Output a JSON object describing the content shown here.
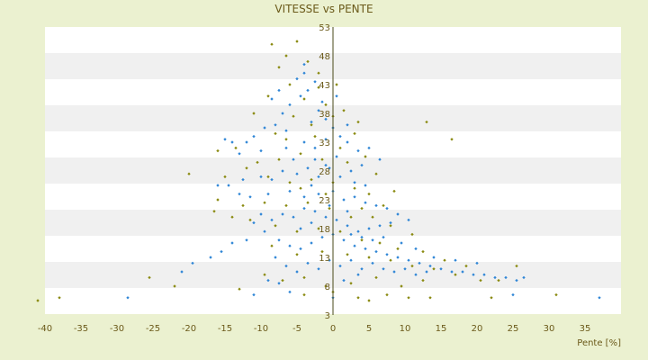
{
  "chart_data": {
    "type": "scatter",
    "title": "VITESSE vs PENTE",
    "xlabel": "Pente [%]",
    "ylabel": "",
    "xlim": [
      -40,
      40
    ],
    "ylim": [
      3,
      53
    ],
    "x_ticks": [
      "-40",
      "-35",
      "-30",
      "-25",
      "-20",
      "-15",
      "-10",
      "-5",
      "0",
      "5",
      "10",
      "15",
      "20",
      "25",
      "30",
      "35"
    ],
    "y_ticks": [
      "3",
      "8",
      "13",
      "18",
      "23",
      "28",
      "33",
      "38",
      "43",
      "48",
      "53"
    ],
    "grid": "horizontal alternating bands",
    "legend": "none",
    "colors": {
      "background": "#ebf1d0",
      "plot_band_light": "#ffffff",
      "plot_band_dark": "#f0f0f0",
      "text": "#6b5a1a",
      "axis": "#4a4a1a",
      "series_blue": "#2f86d6",
      "series_olive": "#8a8a10"
    },
    "series": [
      {
        "color": "#2f86d6",
        "points": [
          [
            -5.0,
            44.0
          ],
          [
            -4.5,
            41.0
          ],
          [
            -4.0,
            45.0
          ],
          [
            -3.5,
            42.0
          ],
          [
            -6.0,
            39.5
          ],
          [
            -7.0,
            38.0
          ],
          [
            -2.0,
            38.5
          ],
          [
            -1.5,
            40.0
          ],
          [
            0.5,
            41.0
          ],
          [
            -3.0,
            36.5
          ],
          [
            -8.0,
            36.0
          ],
          [
            -9.5,
            35.5
          ],
          [
            -11.0,
            34.0
          ],
          [
            -12.0,
            33.0
          ],
          [
            -14.0,
            33.0
          ],
          [
            -15.0,
            33.5
          ],
          [
            -13.0,
            31.0
          ],
          [
            -10.0,
            31.5
          ],
          [
            -6.5,
            32.0
          ],
          [
            -4.0,
            33.0
          ],
          [
            -2.5,
            32.0
          ],
          [
            -1.0,
            33.5
          ],
          [
            1.0,
            34.0
          ],
          [
            2.0,
            33.0
          ],
          [
            3.5,
            31.5
          ],
          [
            5.0,
            32.0
          ],
          [
            6.5,
            30.0
          ],
          [
            4.0,
            29.0
          ],
          [
            2.5,
            28.0
          ],
          [
            1.0,
            27.0
          ],
          [
            -0.5,
            28.5
          ],
          [
            -2.0,
            27.0
          ],
          [
            -3.5,
            28.5
          ],
          [
            -5.0,
            27.5
          ],
          [
            -7.0,
            28.0
          ],
          [
            -8.5,
            26.5
          ],
          [
            -10.0,
            27.0
          ],
          [
            -12.5,
            26.5
          ],
          [
            -14.5,
            25.5
          ],
          [
            -16.0,
            25.5
          ],
          [
            -13.0,
            24.0
          ],
          [
            -11.5,
            23.5
          ],
          [
            -9.0,
            24.0
          ],
          [
            -6.0,
            24.5
          ],
          [
            -4.0,
            23.5
          ],
          [
            -2.0,
            24.0
          ],
          [
            0.0,
            24.5
          ],
          [
            1.5,
            23.0
          ],
          [
            3.0,
            23.5
          ],
          [
            4.5,
            22.5
          ],
          [
            6.0,
            22.0
          ],
          [
            7.5,
            21.5
          ],
          [
            9.0,
            20.5
          ],
          [
            10.5,
            19.5
          ],
          [
            8.0,
            19.0
          ],
          [
            6.5,
            18.5
          ],
          [
            5.0,
            18.0
          ],
          [
            3.5,
            17.5
          ],
          [
            2.0,
            18.5
          ],
          [
            0.5,
            19.5
          ],
          [
            -1.0,
            20.0
          ],
          [
            -2.5,
            21.0
          ],
          [
            -4.0,
            21.5
          ],
          [
            -5.5,
            20.0
          ],
          [
            -7.0,
            20.5
          ],
          [
            -8.5,
            19.5
          ],
          [
            -10.0,
            20.5
          ],
          [
            -11.0,
            19.0
          ],
          [
            -9.5,
            17.5
          ],
          [
            -7.5,
            16.0
          ],
          [
            -6.0,
            15.0
          ],
          [
            -4.5,
            14.5
          ],
          [
            -3.0,
            15.5
          ],
          [
            -1.5,
            16.5
          ],
          [
            0.0,
            17.0
          ],
          [
            1.5,
            16.0
          ],
          [
            3.0,
            15.0
          ],
          [
            4.5,
            14.5
          ],
          [
            6.0,
            14.0
          ],
          [
            7.5,
            13.5
          ],
          [
            9.0,
            13.0
          ],
          [
            10.5,
            12.5
          ],
          [
            12.0,
            12.0
          ],
          [
            13.5,
            11.5
          ],
          [
            15.0,
            11.0
          ],
          [
            16.5,
            10.5
          ],
          [
            18.0,
            10.5
          ],
          [
            19.5,
            10.0
          ],
          [
            21.0,
            10.0
          ],
          [
            22.5,
            9.5
          ],
          [
            24.0,
            9.5
          ],
          [
            25.5,
            9.0
          ],
          [
            26.5,
            9.5
          ],
          [
            20.0,
            12.0
          ],
          [
            17.0,
            12.5
          ],
          [
            14.0,
            13.0
          ],
          [
            11.5,
            14.5
          ],
          [
            9.5,
            15.5
          ],
          [
            7.0,
            16.5
          ],
          [
            5.5,
            16.0
          ],
          [
            4.0,
            16.5
          ],
          [
            2.5,
            17.0
          ],
          [
            -12.0,
            16.0
          ],
          [
            -14.0,
            15.5
          ],
          [
            -15.5,
            14.0
          ],
          [
            -17.0,
            13.0
          ],
          [
            -19.5,
            12.0
          ],
          [
            -21.0,
            10.5
          ],
          [
            -8.0,
            13.0
          ],
          [
            -6.5,
            11.5
          ],
          [
            -5.0,
            10.5
          ],
          [
            -3.5,
            12.0
          ],
          [
            -2.0,
            11.0
          ],
          [
            -0.5,
            12.5
          ],
          [
            1.0,
            11.5
          ],
          [
            2.5,
            12.5
          ],
          [
            4.0,
            11.0
          ],
          [
            5.5,
            12.0
          ],
          [
            7.0,
            11.0
          ],
          [
            8.5,
            10.5
          ],
          [
            10.0,
            11.0
          ],
          [
            11.5,
            10.0
          ],
          [
            13.0,
            10.5
          ],
          [
            2.0,
            21.0
          ],
          [
            -0.5,
            22.0
          ],
          [
            -3.0,
            25.5
          ],
          [
            -5.5,
            30.0
          ],
          [
            -6.5,
            35.0
          ],
          [
            -2.5,
            30.0
          ],
          [
            -1.0,
            29.0
          ],
          [
            0.5,
            30.5
          ],
          [
            3.0,
            26.0
          ],
          [
            4.5,
            25.5
          ],
          [
            -4.5,
            18.0
          ],
          [
            -3.0,
            19.0
          ],
          [
            -28.5,
            6.0
          ],
          [
            -11.0,
            6.5
          ],
          [
            -6.0,
            7.0
          ],
          [
            0.0,
            6.0
          ],
          [
            25.0,
            6.5
          ],
          [
            37.0,
            6.0
          ],
          [
            -9.0,
            9.0
          ],
          [
            -7.5,
            8.5
          ],
          [
            1.5,
            9.0
          ],
          [
            3.5,
            10.0
          ],
          [
            -4.0,
            46.5
          ],
          [
            -2.5,
            43.5
          ],
          [
            -7.5,
            42.0
          ],
          [
            -8.5,
            40.5
          ],
          [
            -1.0,
            37.0
          ],
          [
            0.0,
            35.5
          ],
          [
            2.0,
            36.0
          ]
        ]
      },
      {
        "color": "#8a8a10",
        "points": [
          [
            -8.5,
            50.0
          ],
          [
            -5.0,
            50.5
          ],
          [
            -7.5,
            46.0
          ],
          [
            -3.5,
            47.0
          ],
          [
            -6.0,
            43.0
          ],
          [
            -2.0,
            42.5
          ],
          [
            -9.0,
            41.0
          ],
          [
            -4.0,
            40.5
          ],
          [
            -1.0,
            39.5
          ],
          [
            -11.0,
            38.0
          ],
          [
            -5.5,
            37.5
          ],
          [
            -3.0,
            36.0
          ],
          [
            0.0,
            37.5
          ],
          [
            -8.0,
            34.5
          ],
          [
            -6.5,
            33.5
          ],
          [
            -2.5,
            34.0
          ],
          [
            1.0,
            32.0
          ],
          [
            3.0,
            34.5
          ],
          [
            -13.5,
            32.0
          ],
          [
            -16.0,
            31.5
          ],
          [
            -10.5,
            29.5
          ],
          [
            -7.5,
            30.0
          ],
          [
            -4.5,
            31.0
          ],
          [
            -1.5,
            30.0
          ],
          [
            2.0,
            29.5
          ],
          [
            4.5,
            30.5
          ],
          [
            6.0,
            27.5
          ],
          [
            -20.0,
            27.5
          ],
          [
            -15.0,
            27.0
          ],
          [
            -12.0,
            28.5
          ],
          [
            -9.0,
            27.0
          ],
          [
            -6.0,
            26.0
          ],
          [
            -3.0,
            26.5
          ],
          [
            0.0,
            26.0
          ],
          [
            3.0,
            25.0
          ],
          [
            5.0,
            24.0
          ],
          [
            8.5,
            24.5
          ],
          [
            -16.0,
            23.0
          ],
          [
            -12.5,
            22.0
          ],
          [
            -9.5,
            22.5
          ],
          [
            -6.5,
            22.0
          ],
          [
            -3.5,
            22.5
          ],
          [
            -0.5,
            21.5
          ],
          [
            2.5,
            20.0
          ],
          [
            5.5,
            20.0
          ],
          [
            8.0,
            18.5
          ],
          [
            11.0,
            17.0
          ],
          [
            -16.5,
            21.0
          ],
          [
            -14.0,
            20.0
          ],
          [
            -11.5,
            19.5
          ],
          [
            -8.0,
            18.5
          ],
          [
            -5.0,
            17.5
          ],
          [
            -2.0,
            18.0
          ],
          [
            1.0,
            17.5
          ],
          [
            4.0,
            16.0
          ],
          [
            6.5,
            15.5
          ],
          [
            9.0,
            14.5
          ],
          [
            12.5,
            14.0
          ],
          [
            -8.5,
            15.0
          ],
          [
            -5.0,
            13.5
          ],
          [
            -1.5,
            14.0
          ],
          [
            2.0,
            13.5
          ],
          [
            5.0,
            13.0
          ],
          [
            8.0,
            12.5
          ],
          [
            11.0,
            11.5
          ],
          [
            14.0,
            11.0
          ],
          [
            17.0,
            10.0
          ],
          [
            20.5,
            9.0
          ],
          [
            23.0,
            9.0
          ],
          [
            25.5,
            11.5
          ],
          [
            18.5,
            11.5
          ],
          [
            15.5,
            12.5
          ],
          [
            13.0,
            36.5
          ],
          [
            16.5,
            33.5
          ],
          [
            -25.5,
            9.5
          ],
          [
            -22.0,
            8.0
          ],
          [
            -13.0,
            7.5
          ],
          [
            -9.5,
            10.0
          ],
          [
            -7.0,
            9.0
          ],
          [
            -4.0,
            9.5
          ],
          [
            -1.0,
            8.0
          ],
          [
            2.5,
            8.5
          ],
          [
            6.0,
            9.5
          ],
          [
            9.5,
            8.0
          ],
          [
            12.5,
            9.0
          ],
          [
            -41.0,
            5.5
          ],
          [
            -38.0,
            6.0
          ],
          [
            -4.0,
            6.5
          ],
          [
            0.0,
            7.0
          ],
          [
            3.5,
            6.0
          ],
          [
            5.0,
            5.5
          ],
          [
            7.5,
            6.5
          ],
          [
            10.5,
            6.0
          ],
          [
            13.5,
            6.0
          ],
          [
            22.0,
            6.0
          ],
          [
            31.0,
            6.5
          ],
          [
            -2.0,
            45.0
          ],
          [
            -6.5,
            48.0
          ],
          [
            0.5,
            43.0
          ],
          [
            1.5,
            38.5
          ],
          [
            3.5,
            36.5
          ],
          [
            -1.0,
            24.0
          ],
          [
            -4.5,
            25.0
          ],
          [
            4.0,
            21.5
          ],
          [
            7.0,
            22.0
          ]
        ]
      }
    ]
  }
}
